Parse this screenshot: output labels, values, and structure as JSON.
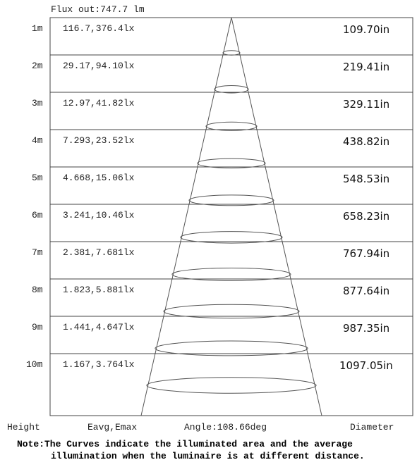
{
  "flux_out": "Flux out:747.7 lm",
  "angle": "Angle:108.66deg",
  "columns": {
    "height": "Height",
    "eavg_emax": "Eavg,Emax",
    "diameter": "Diameter"
  },
  "note": {
    "line1": "Note:The Curves indicate the illuminated area and the average",
    "line2": "illumination when the luminaire is at different distance."
  },
  "rows": [
    {
      "height": "1m",
      "illuminance": "116.7,376.4lx",
      "diameter": "109.70in"
    },
    {
      "height": "2m",
      "illuminance": "29.17,94.10lx",
      "diameter": "219.41in"
    },
    {
      "height": "3m",
      "illuminance": "12.97,41.82lx",
      "diameter": "329.11in"
    },
    {
      "height": "4m",
      "illuminance": "7.293,23.52lx",
      "diameter": "438.82in"
    },
    {
      "height": "5m",
      "illuminance": "4.668,15.06lx",
      "diameter": "548.53in"
    },
    {
      "height": "6m",
      "illuminance": "3.241,10.46lx",
      "diameter": "658.23in"
    },
    {
      "height": "7m",
      "illuminance": "2.381,7.681lx",
      "diameter": "767.94in"
    },
    {
      "height": "8m",
      "illuminance": "1.823,5.881lx",
      "diameter": "877.64in"
    },
    {
      "height": "9m",
      "illuminance": "1.441,4.647lx",
      "diameter": "987.35in"
    },
    {
      "height": "10m",
      "illuminance": "1.167,3.764lx",
      "diameter": "1097.05in"
    }
  ]
}
